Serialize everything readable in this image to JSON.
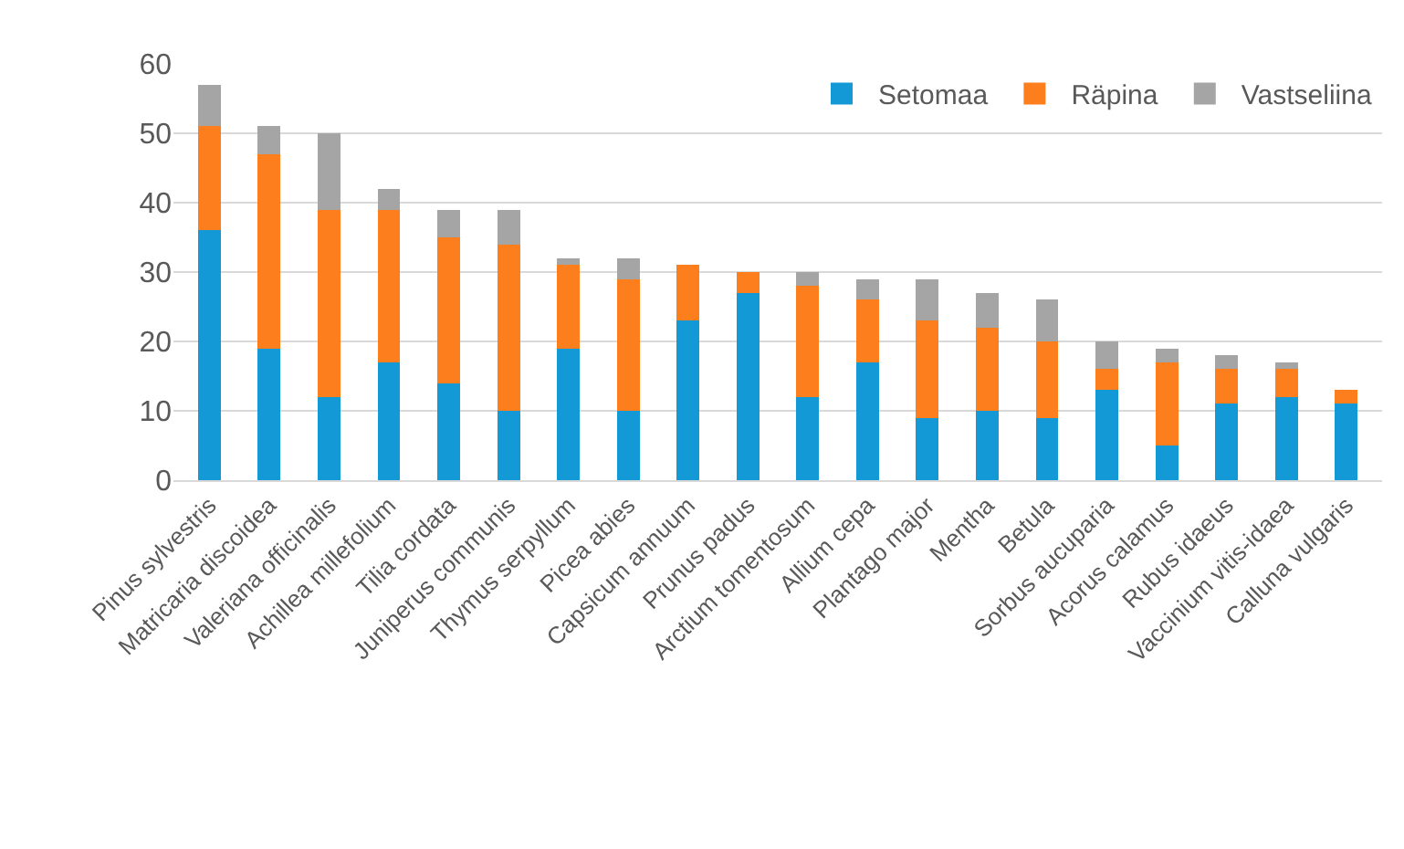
{
  "chart_data": {
    "type": "bar",
    "stacked": true,
    "categories": [
      "Pinus sylvestris",
      "Matricaria discoidea",
      "Valeriana officinalis",
      "Achillea millefolium",
      "Tilia cordata",
      "Juniperus communis",
      "Thymus serpyllum",
      "Picea abies",
      "Capsicum annuum",
      "Prunus padus",
      "Arctium tomentosum",
      "Allium cepa",
      "Plantago major",
      "Mentha",
      "Betula",
      "Sorbus aucuparia",
      "Acorus calamus",
      "Rubus idaeus",
      "Vaccinium vitis-idaea",
      "Calluna vulgaris"
    ],
    "series": [
      {
        "name": "Setomaa",
        "color": "#139ad6",
        "values": [
          36,
          19,
          12,
          17,
          14,
          10,
          19,
          10,
          23,
          27,
          12,
          17,
          9,
          10,
          9,
          13,
          5,
          11,
          12,
          11
        ]
      },
      {
        "name": "Räpina",
        "color": "#fd7e1c",
        "values": [
          15,
          28,
          27,
          22,
          21,
          24,
          12,
          19,
          8,
          3,
          16,
          9,
          14,
          12,
          11,
          3,
          12,
          5,
          4,
          2
        ]
      },
      {
        "name": "Vastseliina",
        "color": "#a5a5a5",
        "values": [
          6,
          4,
          11,
          3,
          4,
          5,
          1,
          3,
          0,
          0,
          2,
          3,
          6,
          5,
          6,
          4,
          2,
          2,
          1,
          0
        ]
      }
    ],
    "ylim": [
      0,
      60
    ],
    "yticks": [
      0,
      10,
      20,
      30,
      40,
      50,
      60
    ],
    "grid": "y",
    "legend": "top right"
  }
}
